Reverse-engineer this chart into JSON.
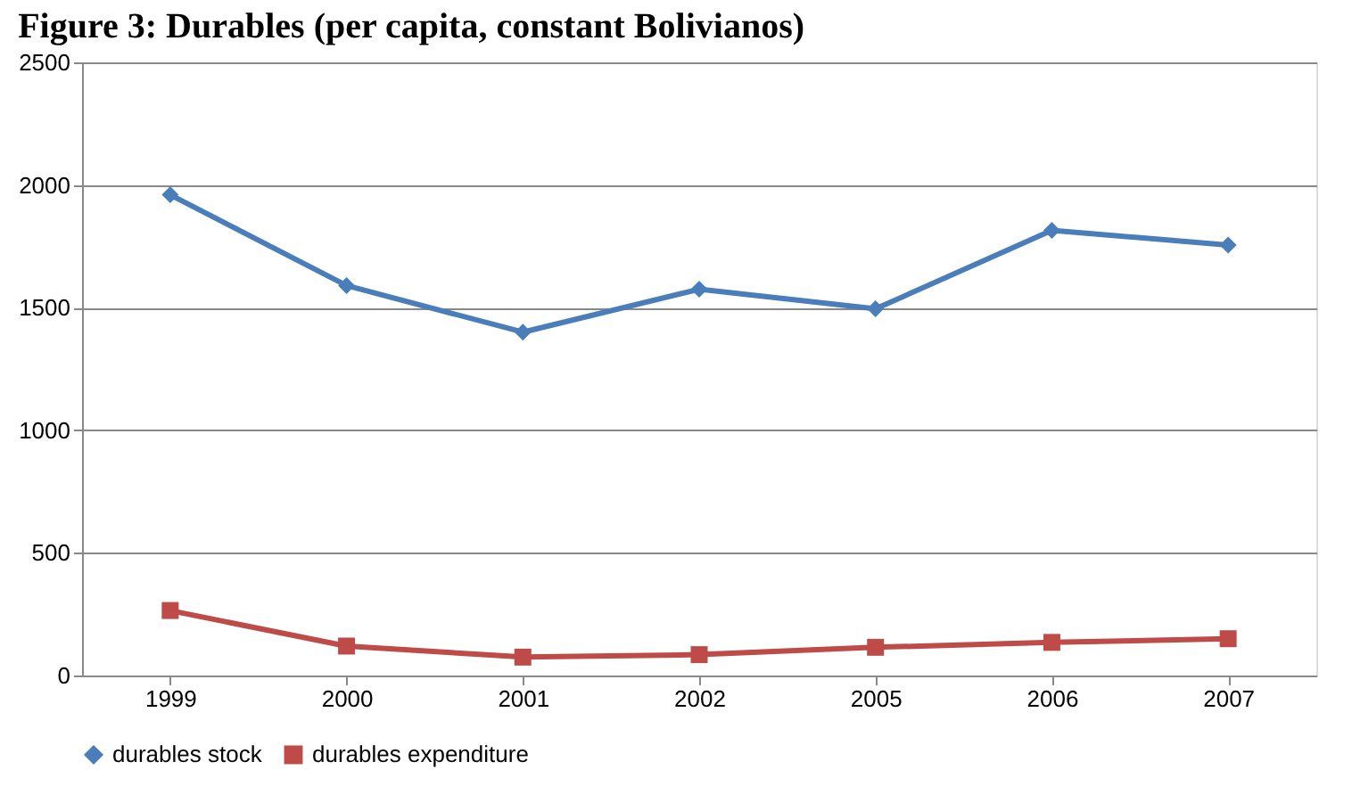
{
  "chart_data": {
    "type": "line",
    "title": "Figure 3: Durables (per capita, constant Bolivianos)",
    "categories": [
      "1999",
      "2000",
      "2001",
      "2002",
      "2005",
      "2006",
      "2007"
    ],
    "series": [
      {
        "name": "durables stock",
        "color": "#4a7ebb",
        "marker": "diamond",
        "values": [
          1960,
          1590,
          1400,
          1575,
          1495,
          1815,
          1755
        ]
      },
      {
        "name": "durables expenditure",
        "color": "#be4b48",
        "marker": "square",
        "values": [
          265,
          120,
          75,
          85,
          115,
          135,
          150
        ]
      }
    ],
    "ylim": [
      0,
      2500
    ],
    "yticks": [
      0,
      500,
      1000,
      1500,
      2000,
      2500
    ],
    "grid": "y",
    "legend": "bottom",
    "line_style": "solid"
  }
}
